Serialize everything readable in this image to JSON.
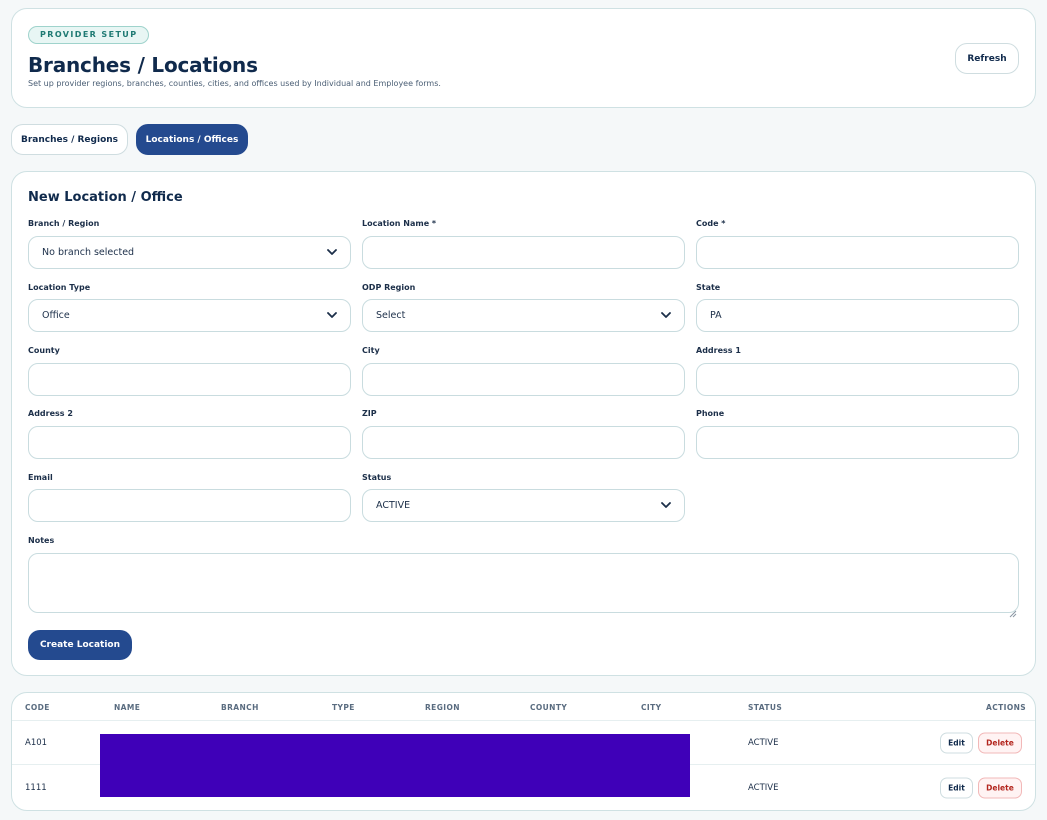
{
  "header": {
    "eyebrow": "PROVIDER SETUP",
    "title": "Branches / Locations",
    "subtitle": "Set up provider regions, branches, counties, cities, and offices used by Individual and Employee forms.",
    "refresh_label": "Refresh"
  },
  "tabs": [
    {
      "label": "Branches / Regions",
      "active": false
    },
    {
      "label": "Locations / Offices",
      "active": true
    }
  ],
  "form": {
    "title": "New Location / Office",
    "fields": {
      "branch": {
        "label": "Branch / Region",
        "value": "No branch selected"
      },
      "location_name": {
        "label": "Location Name *",
        "value": ""
      },
      "code": {
        "label": "Code *",
        "value": ""
      },
      "location_type": {
        "label": "Location Type",
        "value": "Office"
      },
      "odp_region": {
        "label": "ODP Region",
        "value": "Select"
      },
      "state": {
        "label": "State",
        "value": "PA"
      },
      "county": {
        "label": "County",
        "value": ""
      },
      "city": {
        "label": "City",
        "value": ""
      },
      "address1": {
        "label": "Address 1",
        "value": ""
      },
      "address2": {
        "label": "Address 2",
        "value": ""
      },
      "zip": {
        "label": "ZIP",
        "value": ""
      },
      "phone": {
        "label": "Phone",
        "value": ""
      },
      "email": {
        "label": "Email",
        "value": ""
      },
      "status": {
        "label": "Status",
        "value": "ACTIVE"
      },
      "notes": {
        "label": "Notes",
        "value": ""
      }
    },
    "create_label": "Create Location"
  },
  "table": {
    "columns": [
      "CODE",
      "NAME",
      "BRANCH",
      "TYPE",
      "REGION",
      "COUNTY",
      "CITY",
      "STATUS",
      "ACTIONS"
    ],
    "rows": [
      {
        "code": "A101",
        "status": "ACTIVE",
        "edit": "Edit",
        "delete": "Delete"
      },
      {
        "code": "1111",
        "status": "ACTIVE",
        "edit": "Edit",
        "delete": "Delete"
      }
    ]
  },
  "colors": {
    "primary": "#244a8f",
    "redaction": "#3f00b8",
    "danger": "#b3261e"
  }
}
